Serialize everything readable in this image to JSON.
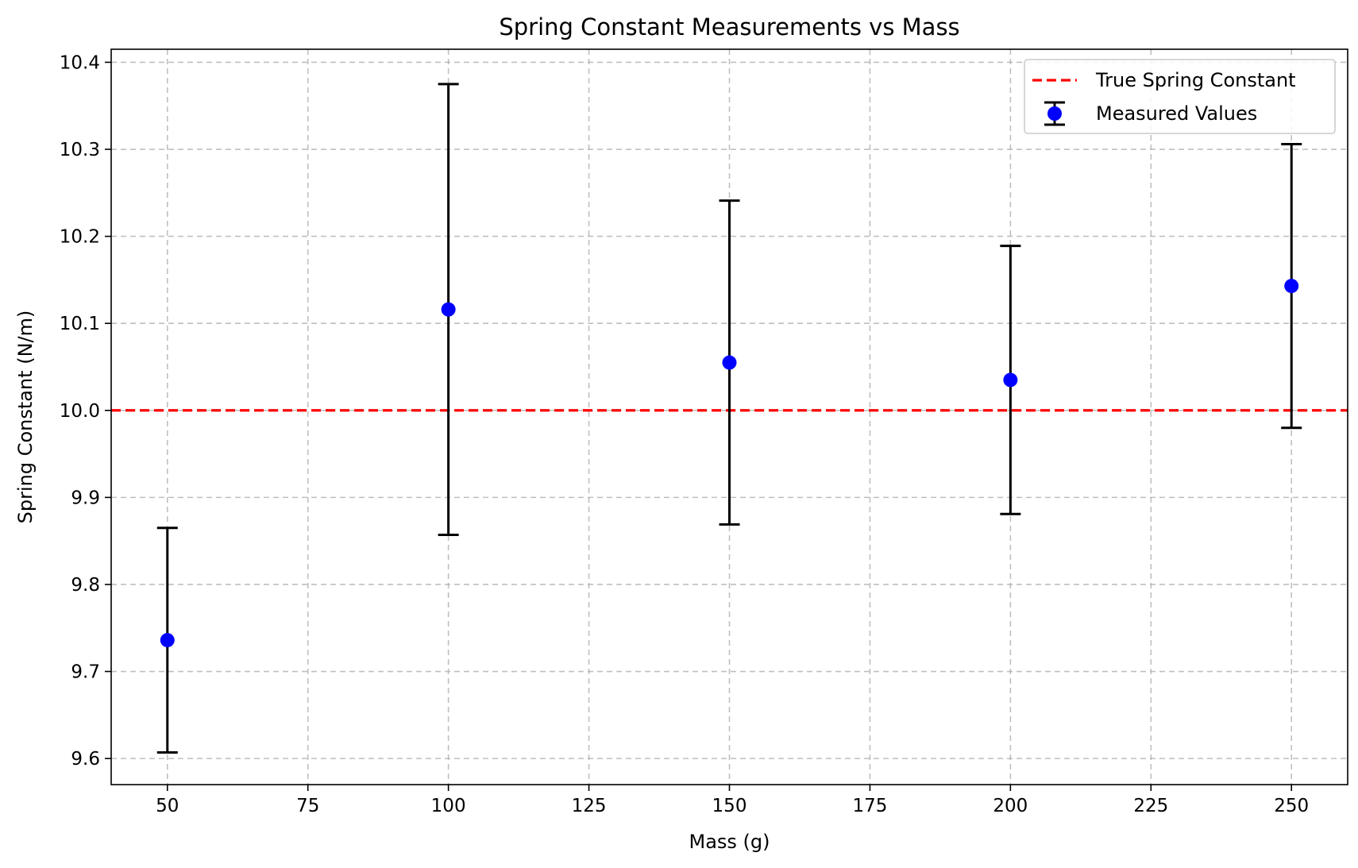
{
  "chart_data": {
    "type": "scatter",
    "title": "Spring Constant Measurements vs Mass",
    "xlabel": "Mass (g)",
    "ylabel": "Spring Constant (N/m)",
    "xlim": [
      40,
      260
    ],
    "ylim": [
      9.57,
      10.415
    ],
    "x_ticks": [
      50,
      75,
      100,
      125,
      150,
      175,
      200,
      225,
      250
    ],
    "x_tick_labels": [
      "50",
      "75",
      "100",
      "125",
      "150",
      "175",
      "200",
      "225",
      "250"
    ],
    "y_ticks": [
      9.6,
      9.7,
      9.8,
      9.9,
      10.0,
      10.1,
      10.2,
      10.3,
      10.4
    ],
    "y_tick_labels": [
      "9.6",
      "9.7",
      "9.8",
      "9.9",
      "10.0",
      "10.1",
      "10.2",
      "10.3",
      "10.4"
    ],
    "grid": true,
    "legend_position": "top-right",
    "series": [
      {
        "name": "Measured Values",
        "kind": "errorbar",
        "color": "#0000ff",
        "errorbar_color": "#000000",
        "x": [
          50,
          100,
          150,
          200,
          250
        ],
        "y": [
          9.736,
          10.116,
          10.055,
          10.035,
          10.143
        ],
        "yerr": [
          0.129,
          0.259,
          0.186,
          0.154,
          0.163
        ]
      }
    ],
    "reference_lines": [
      {
        "name": "True Spring Constant",
        "y": 10.0,
        "color": "#ff0000",
        "style": "dashed"
      }
    ]
  }
}
